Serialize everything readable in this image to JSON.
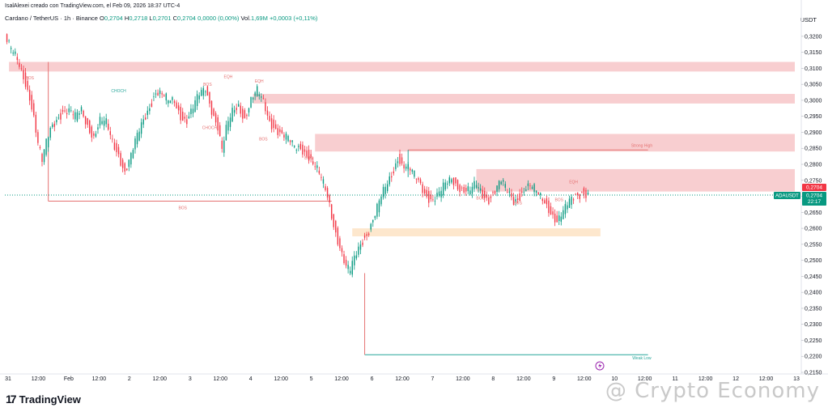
{
  "header": {
    "credit": "IsalAlexei creado con TradingView.com, el Feb 09, 2026 18:37 UTC-4"
  },
  "legend": {
    "symbol": "Cardano / TetherUS · 1h · Binance",
    "o_label": "O",
    "o": "0,2704",
    "h_label": "H",
    "h": "0,2718",
    "l_label": "L",
    "l": "0,2701",
    "c_label": "C",
    "c": "0,2704",
    "change": "0,0000 (0,00%)",
    "vol_label": "Vol.",
    "vol": "1,69M",
    "vol_change": "+0,0003 (+0,11%)"
  },
  "currency": "USDT",
  "brand": {
    "logo": "17",
    "name": "TradingView"
  },
  "watermark": "@ Crypto Economy",
  "chart_data": {
    "type": "candlestick",
    "symbol": "ADAUSDT",
    "ylim": [
      0.215,
      0.323
    ],
    "y_ticks": [
      "0,3200",
      "0,3150",
      "0,3100",
      "0,3050",
      "0,3000",
      "0,2950",
      "0,2900",
      "0,2850",
      "0,2800",
      "0,2750",
      "0,2700",
      "0,2650",
      "0,2600",
      "0,2550",
      "0,2500",
      "0,2450",
      "0,2400",
      "0,2350",
      "0,2300",
      "0,2250",
      "0,2200",
      "0,2150"
    ],
    "y_tick_values": [
      0.32,
      0.315,
      0.31,
      0.305,
      0.3,
      0.295,
      0.29,
      0.285,
      0.28,
      0.275,
      0.27,
      0.265,
      0.26,
      0.255,
      0.25,
      0.245,
      0.24,
      0.235,
      0.23,
      0.225,
      0.22,
      0.215
    ],
    "x_ticks": [
      "31",
      "12:00",
      "Feb",
      "12:00",
      "2",
      "12:00",
      "3",
      "12:00",
      "4",
      "12:00",
      "5",
      "12:00",
      "6",
      "12:00",
      "7",
      "12:00",
      "8",
      "12:00",
      "9",
      "12:00",
      "10",
      "12:00",
      "11",
      "12:00",
      "12",
      "12:00",
      "13"
    ],
    "last_price": "0,2704",
    "last_price_value": 0.2704,
    "price_tag_symbol": "ADAUSDT",
    "price_tag_price": "0,2704",
    "price_tag_countdown": "22:17",
    "upper_tag": "0,2704",
    "close_path": [
      [
        0,
        0.32
      ],
      [
        3,
        0.315
      ],
      [
        6,
        0.312
      ],
      [
        9,
        0.308
      ],
      [
        12,
        0.302
      ],
      [
        14,
        0.295
      ],
      [
        16,
        0.286
      ],
      [
        18,
        0.28
      ],
      [
        20,
        0.286
      ],
      [
        22,
        0.291
      ],
      [
        25,
        0.295
      ],
      [
        28,
        0.297
      ],
      [
        31,
        0.296
      ],
      [
        34,
        0.294
      ],
      [
        37,
        0.297
      ],
      [
        40,
        0.293
      ],
      [
        43,
        0.289
      ],
      [
        46,
        0.293
      ],
      [
        49,
        0.292
      ],
      [
        52,
        0.287
      ],
      [
        55,
        0.284
      ],
      [
        58,
        0.278
      ],
      [
        61,
        0.282
      ],
      [
        64,
        0.288
      ],
      [
        67,
        0.294
      ],
      [
        70,
        0.299
      ],
      [
        73,
        0.303
      ],
      [
        76,
        0.301
      ],
      [
        79,
        0.299
      ],
      [
        82,
        0.3
      ],
      [
        85,
        0.296
      ],
      [
        88,
        0.294
      ],
      [
        91,
        0.297
      ],
      [
        94,
        0.301
      ],
      [
        97,
        0.304
      ],
      [
        100,
        0.298
      ],
      [
        103,
        0.292
      ],
      [
        105,
        0.284
      ],
      [
        107,
        0.29
      ],
      [
        110,
        0.296
      ],
      [
        113,
        0.299
      ],
      [
        116,
        0.295
      ],
      [
        119,
        0.3
      ],
      [
        122,
        0.302
      ],
      [
        125,
        0.299
      ],
      [
        128,
        0.294
      ],
      [
        131,
        0.292
      ],
      [
        134,
        0.289
      ],
      [
        137,
        0.287
      ],
      [
        140,
        0.285
      ],
      [
        143,
        0.286
      ],
      [
        146,
        0.284
      ],
      [
        149,
        0.28
      ],
      [
        152,
        0.276
      ],
      [
        155,
        0.272
      ],
      [
        157,
        0.268
      ],
      [
        159,
        0.262
      ],
      [
        161,
        0.257
      ],
      [
        163,
        0.252
      ],
      [
        165,
        0.247
      ],
      [
        167,
        0.246
      ],
      [
        169,
        0.25
      ],
      [
        171,
        0.254
      ],
      [
        173,
        0.257
      ],
      [
        176,
        0.26
      ],
      [
        179,
        0.264
      ],
      [
        182,
        0.269
      ],
      [
        185,
        0.274
      ],
      [
        188,
        0.279
      ],
      [
        190,
        0.283
      ],
      [
        192,
        0.28
      ],
      [
        195,
        0.278
      ],
      [
        198,
        0.276
      ],
      [
        201,
        0.274
      ],
      [
        204,
        0.271
      ],
      [
        207,
        0.269
      ],
      [
        210,
        0.27
      ],
      [
        213,
        0.273
      ],
      [
        216,
        0.276
      ],
      [
        219,
        0.274
      ],
      [
        222,
        0.272
      ],
      [
        225,
        0.271
      ],
      [
        228,
        0.273
      ],
      [
        231,
        0.271
      ],
      [
        234,
        0.27
      ],
      [
        237,
        0.272
      ],
      [
        240,
        0.274
      ],
      [
        243,
        0.271
      ],
      [
        246,
        0.269
      ],
      [
        249,
        0.271
      ],
      [
        252,
        0.273
      ],
      [
        255,
        0.272
      ],
      [
        258,
        0.27
      ],
      [
        261,
        0.269
      ],
      [
        264,
        0.266
      ],
      [
        267,
        0.262
      ],
      [
        270,
        0.264
      ],
      [
        273,
        0.268
      ],
      [
        276,
        0.271
      ],
      [
        279,
        0.272
      ],
      [
        282,
        0.2704
      ]
    ],
    "zones": [
      {
        "name": "supply-zone-1",
        "y_top": 0.312,
        "y_bottom": 0.309,
        "x_start": 2,
        "x_end": 382,
        "color": "#f7c5c8"
      },
      {
        "name": "supply-zone-2",
        "y_top": 0.302,
        "y_bottom": 0.299,
        "x_start": 120,
        "x_end": 382,
        "color": "#f7c5c8"
      },
      {
        "name": "supply-zone-3",
        "y_top": 0.2895,
        "y_bottom": 0.284,
        "x_start": 150,
        "x_end": 382,
        "color": "#f7c5c8"
      },
      {
        "name": "supply-zone-4",
        "y_top": 0.2785,
        "y_bottom": 0.2715,
        "x_start": 228,
        "x_end": 382,
        "color": "#f7c5c8"
      },
      {
        "name": "demand-zone",
        "y_top": 0.26,
        "y_bottom": 0.2575,
        "x_start": 168,
        "x_end": 288,
        "color": "#fde3c4"
      }
    ],
    "lines": [
      {
        "name": "bos-line-main",
        "y": 0.2685,
        "x_start": 21,
        "x_end": 158,
        "color": "#e57373"
      },
      {
        "name": "weak-low-line",
        "y": 0.2205,
        "x_start": 174,
        "x_end": 311,
        "color": "#26a69a"
      },
      {
        "name": "strong-high-line",
        "y": 0.2845,
        "x_start": 195,
        "x_end": 311,
        "color": "#e57373"
      },
      {
        "name": "last-price-line",
        "y": 0.2704,
        "x_start": 0,
        "x_end": 382,
        "color": "#089981",
        "dotted": true
      }
    ],
    "annotations": [
      {
        "text": "BOS",
        "x": 86,
        "y": 0.266,
        "color": "#e57373"
      },
      {
        "text": "Strong High",
        "x": 308,
        "y": 0.2855,
        "color": "#e57373"
      },
      {
        "text": "Weak Low",
        "x": 308,
        "y": 0.219,
        "color": "#26a69a"
      },
      {
        "text": "CHOCH",
        "x": 55,
        "y": 0.3025,
        "color": "#26a69a"
      },
      {
        "text": "BOS",
        "x": 12,
        "y": 0.3065,
        "color": "#e57373"
      },
      {
        "text": "BOS",
        "x": 98,
        "y": 0.3045,
        "color": "#e57373"
      },
      {
        "text": "EQH",
        "x": 108,
        "y": 0.307,
        "color": "#e57373"
      },
      {
        "text": "EQH",
        "x": 123,
        "y": 0.3055,
        "color": "#e57373"
      },
      {
        "text": "CHOCH",
        "x": 99,
        "y": 0.291,
        "color": "#e57373"
      },
      {
        "text": "BOS",
        "x": 125,
        "y": 0.2875,
        "color": "#e57373"
      },
      {
        "text": "BOS",
        "x": 147,
        "y": 0.2815,
        "color": "#e57373"
      },
      {
        "text": "BOS",
        "x": 230,
        "y": 0.269,
        "color": "#e57373"
      },
      {
        "text": "BOS",
        "x": 248,
        "y": 0.2675,
        "color": "#e57373"
      },
      {
        "text": "BOS",
        "x": 268,
        "y": 0.2685,
        "color": "#e57373"
      },
      {
        "text": "EQH",
        "x": 275,
        "y": 0.274,
        "color": "#e57373"
      }
    ]
  }
}
